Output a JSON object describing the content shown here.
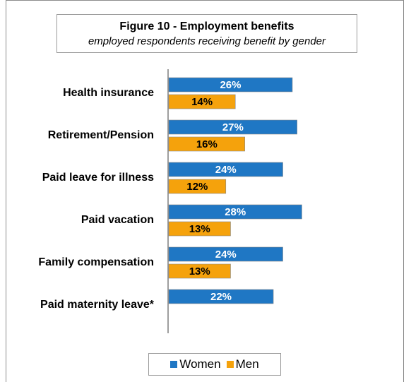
{
  "chart_data": {
    "type": "bar",
    "orientation": "horizontal",
    "title": "Figure 10 - Employment benefits",
    "subtitle": "employed respondents receiving benefit by gender",
    "categories": [
      "Health insurance",
      "Retirement/Pension",
      "Paid leave for illness",
      "Paid vacation",
      "Family compensation",
      "Paid maternity leave*"
    ],
    "series": [
      {
        "name": "Women",
        "color": "#1f77c4",
        "values": [
          26,
          27,
          24,
          28,
          24,
          22
        ],
        "labels": [
          "26%",
          "27%",
          "24%",
          "28%",
          "24%",
          "22%"
        ]
      },
      {
        "name": "Men",
        "color": "#f5a20c",
        "values": [
          14,
          16,
          12,
          13,
          13,
          null
        ],
        "labels": [
          "14%",
          "16%",
          "12%",
          "13%",
          "13%",
          ""
        ]
      }
    ],
    "xlim": [
      0,
      30
    ],
    "grid": false,
    "legend": "bottom"
  }
}
